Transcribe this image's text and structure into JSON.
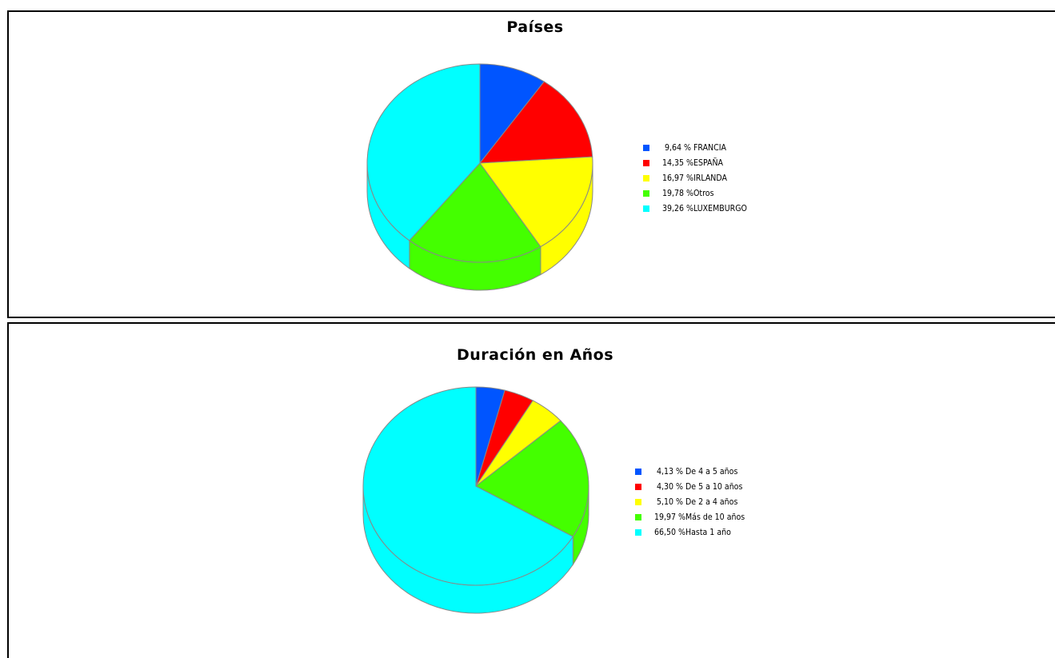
{
  "chart_data": [
    {
      "type": "pie",
      "title": "Países",
      "labels": [
        "FRANCIA",
        "ESPAÑA",
        "IRLANDA",
        "Otros",
        "LUXEMBURGO"
      ],
      "values": [
        9.64,
        14.35,
        16.97,
        19.78,
        39.26
      ],
      "legend_pct": [
        "9,64 %",
        "14,35 %",
        "16,97 %",
        "19,78 %",
        "39,26 %"
      ],
      "colors": [
        "#0055ff",
        "#ff0000",
        "#ffff00",
        "#44ff00",
        "#00ffff"
      ],
      "legend_position": "right",
      "style": "3d"
    },
    {
      "type": "pie",
      "title": "Duración en Años",
      "labels": [
        "De 4 a 5 años",
        "De 5 a 10 años",
        "De 2 a 4 años",
        "Más de 10 años",
        "Hasta 1 año"
      ],
      "values": [
        4.13,
        4.3,
        5.1,
        19.97,
        66.5
      ],
      "legend_pct": [
        "4,13 %",
        "4,30 %",
        "5,10 %",
        "19,97 %",
        "66,50 %"
      ],
      "colors": [
        "#0055ff",
        "#ff0000",
        "#ffff00",
        "#44ff00",
        "#00ffff"
      ],
      "legend_position": "right",
      "style": "3d"
    }
  ]
}
